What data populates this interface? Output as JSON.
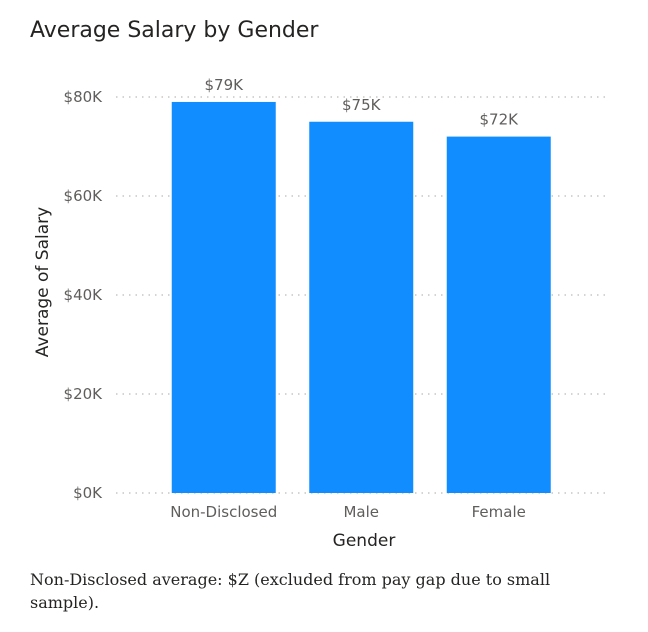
{
  "chart_data": {
    "type": "bar",
    "title": "Average Salary by Gender",
    "xlabel": "Gender",
    "ylabel": "Average of Salary",
    "categories": [
      "Non-Disclosed",
      "Male",
      "Female"
    ],
    "values": [
      79000,
      75000,
      72000
    ],
    "data_labels": [
      "$79K",
      "$75K",
      "$72K"
    ],
    "ylim": [
      0,
      80000
    ],
    "yticks": [
      0,
      20000,
      40000,
      60000,
      80000
    ],
    "ytick_labels": [
      "$0K",
      "$20K",
      "$40K",
      "$60K",
      "$80K"
    ],
    "grid": true,
    "bar_color": "#118DFF"
  },
  "footnote": "Non-Disclosed average: $Z (excluded from pay gap due to small sample)."
}
